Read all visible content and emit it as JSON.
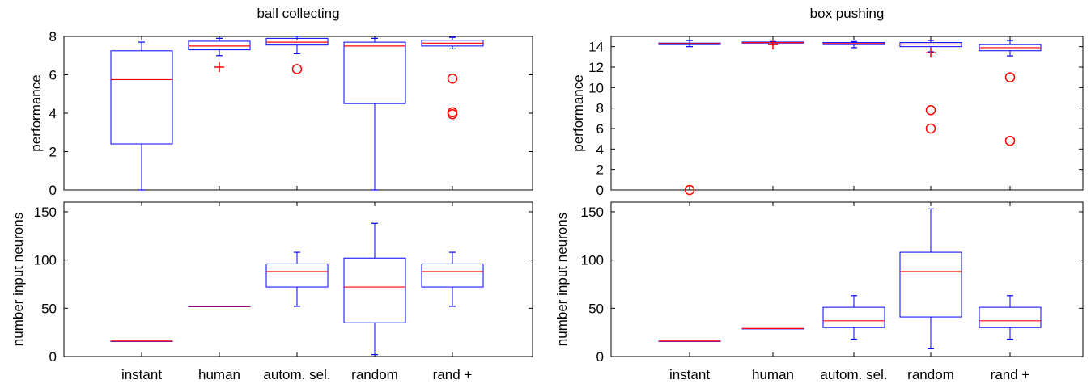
{
  "chart_data": [
    {
      "type": "box",
      "title": "ball collecting",
      "ylabel": "performance",
      "categories": [
        "instant",
        "human",
        "autom. sel.",
        "random",
        "rand +"
      ],
      "ylim": [
        0,
        8
      ],
      "yticks": [
        0,
        2,
        4,
        6,
        8
      ],
      "boxes": [
        {
          "q1": 2.4,
          "median": 5.75,
          "q3": 7.25,
          "whisker_low": 0.0,
          "whisker_high": 7.7
        },
        {
          "q1": 7.3,
          "median": 7.5,
          "q3": 7.75,
          "whisker_low": 7.0,
          "whisker_high": 7.9
        },
        {
          "q1": 7.55,
          "median": 7.7,
          "q3": 7.9,
          "whisker_low": 7.1,
          "whisker_high": 8.0
        },
        {
          "q1": 4.5,
          "median": 7.5,
          "q3": 7.7,
          "whisker_low": 0.0,
          "whisker_high": 7.9
        },
        {
          "q1": 7.5,
          "median": 7.65,
          "q3": 7.8,
          "whisker_low": 7.35,
          "whisker_high": 7.95
        }
      ],
      "outliers": [
        {
          "category": "human",
          "value": 6.4,
          "marker": "+"
        },
        {
          "category": "autom. sel.",
          "value": 6.3,
          "marker": "o"
        },
        {
          "category": "rand +",
          "value": 5.8,
          "marker": "o"
        },
        {
          "category": "rand +",
          "value": 4.05,
          "marker": "o"
        },
        {
          "category": "rand +",
          "value": 3.95,
          "marker": "o"
        }
      ],
      "box_color": "#0000ff",
      "median_color": "#ff0000"
    },
    {
      "type": "box",
      "title": "",
      "ylabel": "number input neurons",
      "categories": [
        "instant",
        "human",
        "autom. sel.",
        "random",
        "rand +"
      ],
      "xlabels": [
        "instant",
        "human",
        "autom. sel.",
        "random",
        "rand +"
      ],
      "ylim": [
        0,
        160
      ],
      "yticks": [
        0,
        50,
        100,
        150
      ],
      "boxes": [
        {
          "q1": 16,
          "median": 16,
          "q3": 16,
          "whisker_low": 16,
          "whisker_high": 16
        },
        {
          "q1": 52,
          "median": 52,
          "q3": 52,
          "whisker_low": 52,
          "whisker_high": 52
        },
        {
          "q1": 72,
          "median": 88,
          "q3": 96,
          "whisker_low": 52,
          "whisker_high": 108
        },
        {
          "q1": 35,
          "median": 72,
          "q3": 102,
          "whisker_low": 2,
          "whisker_high": 138
        },
        {
          "q1": 72,
          "median": 88,
          "q3": 96,
          "whisker_low": 52,
          "whisker_high": 108
        }
      ],
      "outliers": [],
      "box_color": "#0000ff",
      "median_color": "#ff0000"
    },
    {
      "type": "box",
      "title": "box pushing",
      "ylabel": "performance",
      "categories": [
        "instant",
        "human",
        "autom. sel.",
        "random",
        "rand +"
      ],
      "ylim": [
        0,
        15
      ],
      "yticks": [
        0,
        2,
        4,
        6,
        8,
        10,
        12,
        14
      ],
      "boxes": [
        {
          "q1": 14.2,
          "median": 14.3,
          "q3": 14.35,
          "whisker_low": 14.0,
          "whisker_high": 14.6
        },
        {
          "q1": 14.35,
          "median": 14.4,
          "q3": 14.45,
          "whisker_low": 14.35,
          "whisker_high": 14.5
        },
        {
          "q1": 14.2,
          "median": 14.3,
          "q3": 14.4,
          "whisker_low": 13.9,
          "whisker_high": 14.5
        },
        {
          "q1": 14.0,
          "median": 14.25,
          "q3": 14.4,
          "whisker_low": 13.5,
          "whisker_high": 14.6
        },
        {
          "q1": 13.6,
          "median": 13.9,
          "q3": 14.2,
          "whisker_low": 13.1,
          "whisker_high": 14.6
        }
      ],
      "outliers": [
        {
          "category": "instant",
          "value": 0.0,
          "marker": "o"
        },
        {
          "category": "human",
          "value": 14.2,
          "marker": "+"
        },
        {
          "category": "random",
          "value": 13.4,
          "marker": "+"
        },
        {
          "category": "random",
          "value": 7.8,
          "marker": "o"
        },
        {
          "category": "random",
          "value": 6.0,
          "marker": "o"
        },
        {
          "category": "rand +",
          "value": 11.0,
          "marker": "o"
        },
        {
          "category": "rand +",
          "value": 4.8,
          "marker": "o"
        }
      ],
      "box_color": "#0000ff",
      "median_color": "#ff0000"
    },
    {
      "type": "box",
      "title": "",
      "ylabel": "number input neurons",
      "categories": [
        "instant",
        "human",
        "autom. sel.",
        "random",
        "rand +"
      ],
      "xlabels": [
        "instant",
        "human",
        "autom. sel.",
        "random",
        "rand +"
      ],
      "ylim": [
        0,
        160
      ],
      "yticks": [
        0,
        50,
        100,
        150
      ],
      "boxes": [
        {
          "q1": 16,
          "median": 16,
          "q3": 16,
          "whisker_low": 16,
          "whisker_high": 16
        },
        {
          "q1": 29,
          "median": 29,
          "q3": 29,
          "whisker_low": 29,
          "whisker_high": 29
        },
        {
          "q1": 30,
          "median": 37,
          "q3": 51,
          "whisker_low": 18,
          "whisker_high": 63
        },
        {
          "q1": 41,
          "median": 88,
          "q3": 108,
          "whisker_low": 8,
          "whisker_high": 153
        },
        {
          "q1": 30,
          "median": 37,
          "q3": 51,
          "whisker_low": 18,
          "whisker_high": 63
        }
      ],
      "outliers": [],
      "box_color": "#0000ff",
      "median_color": "#ff0000"
    }
  ]
}
